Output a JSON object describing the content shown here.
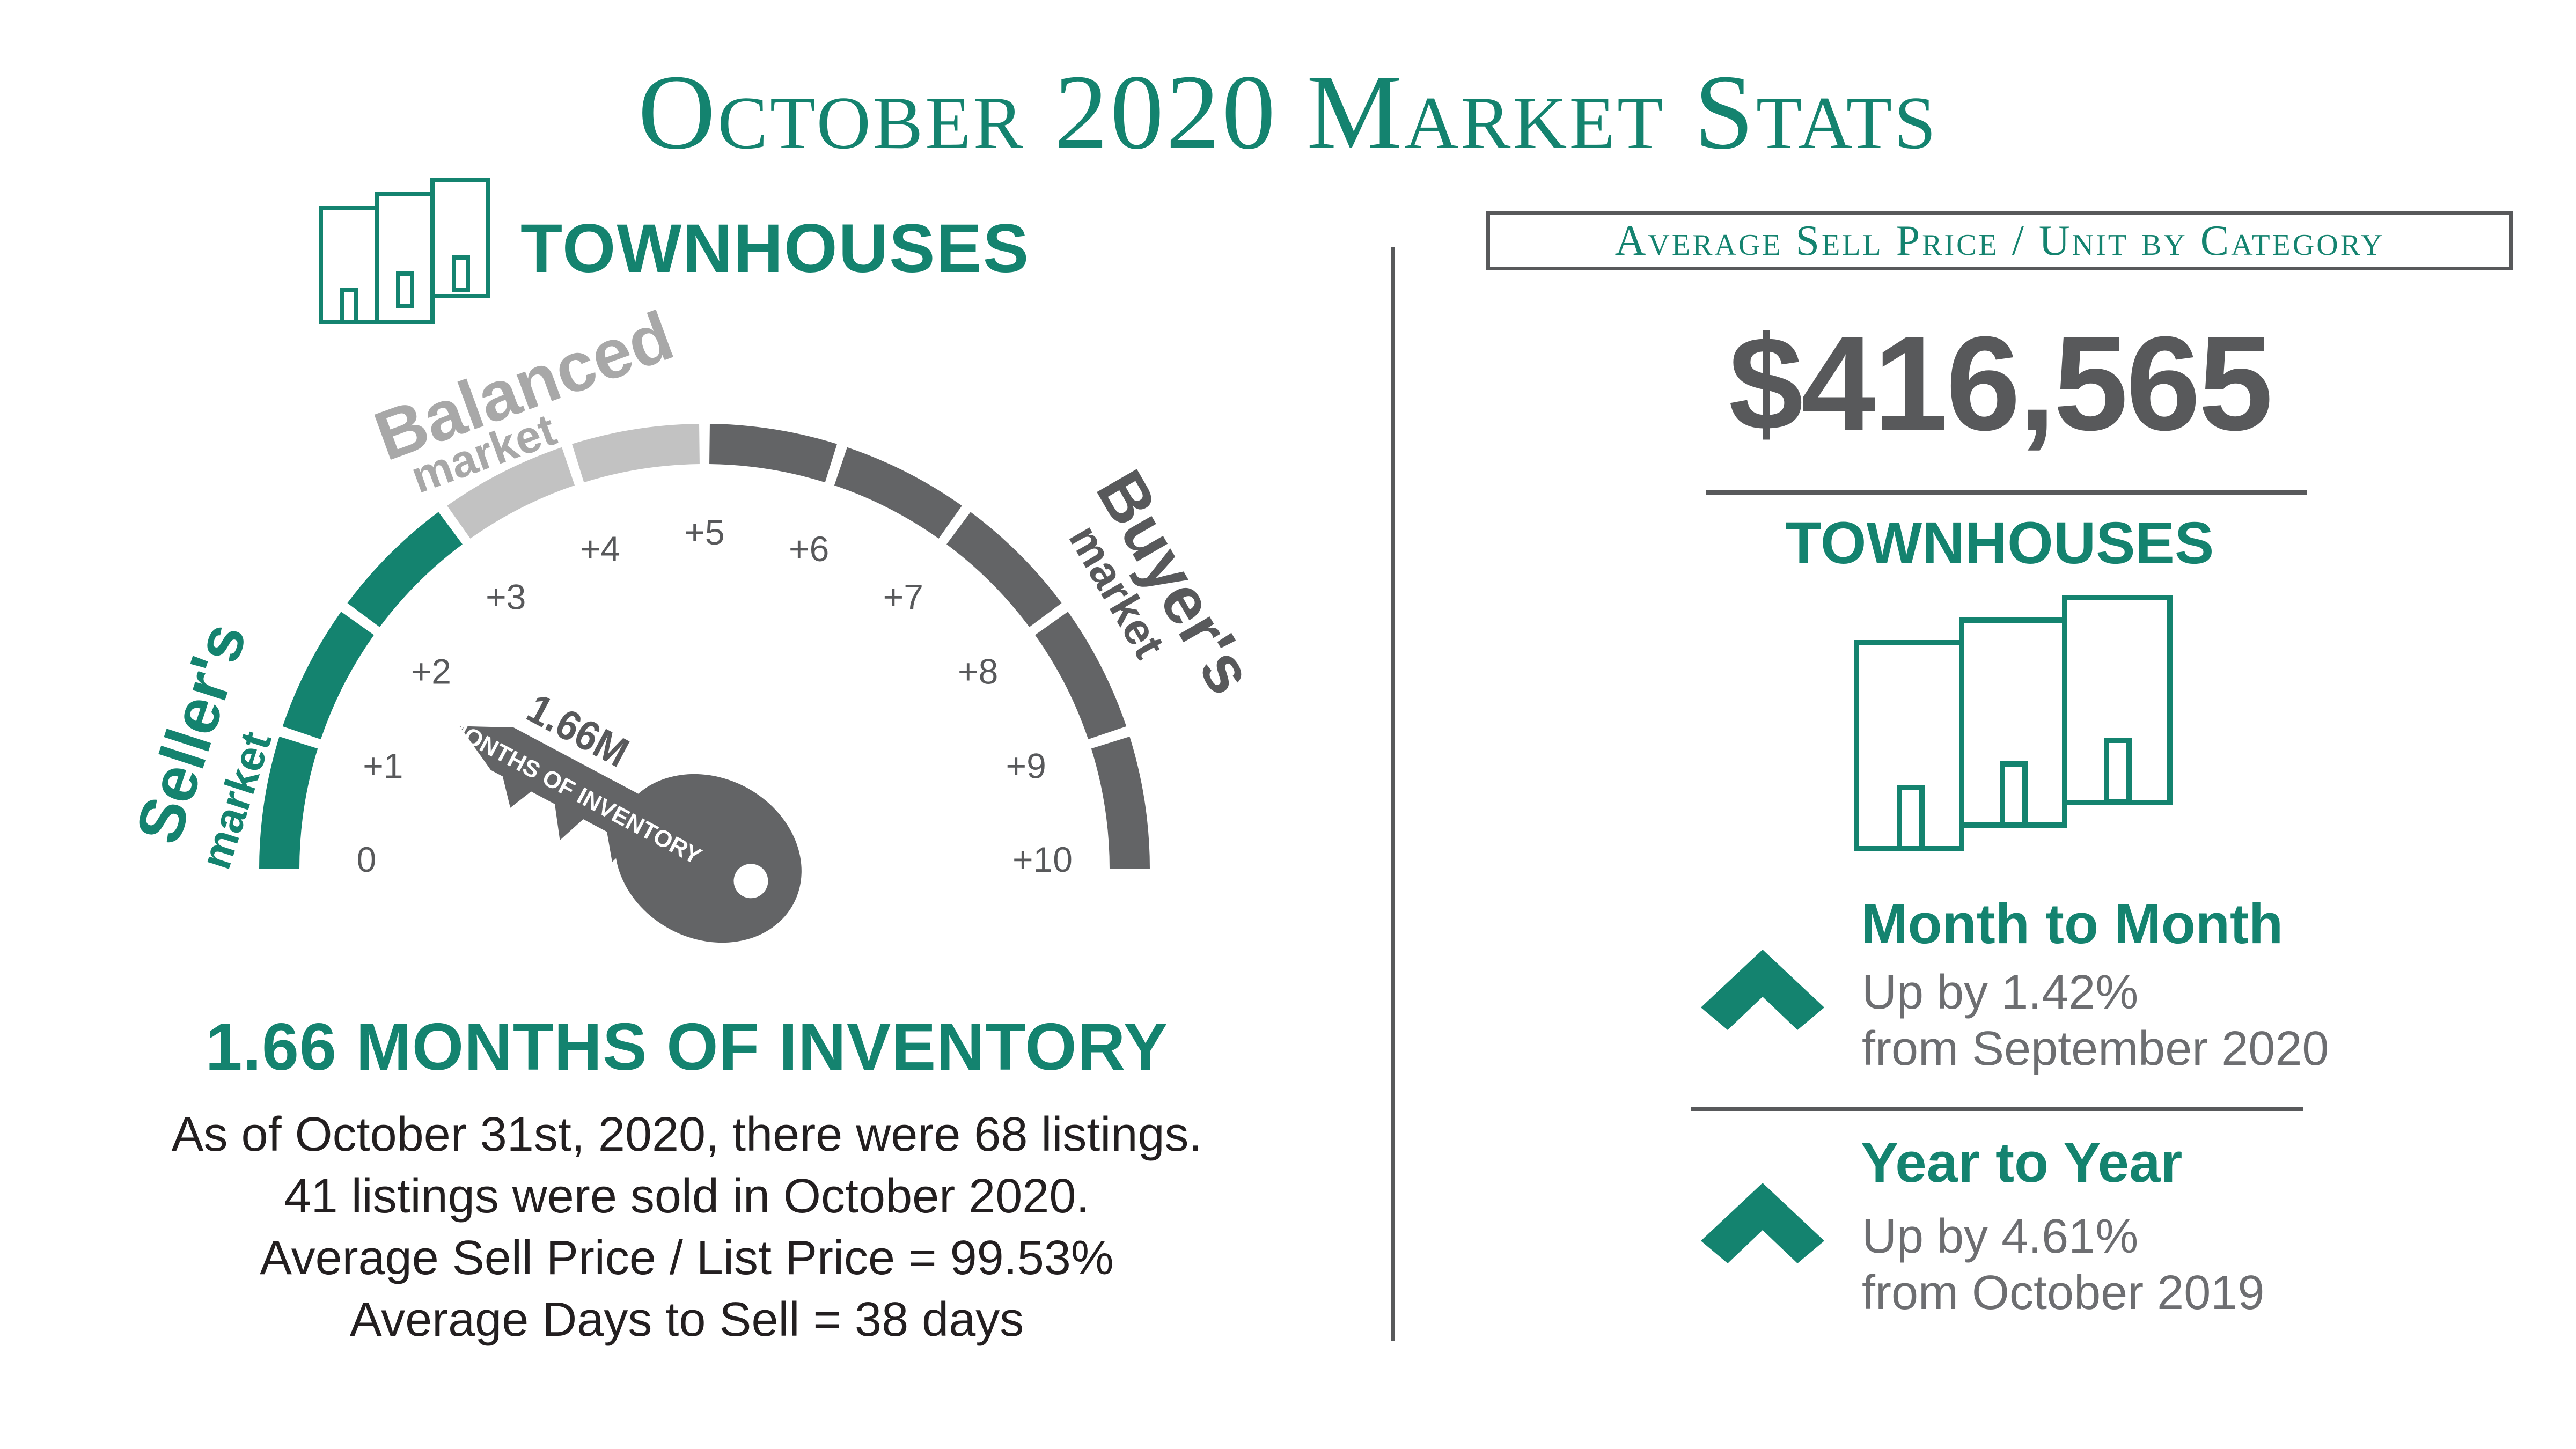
{
  "title": "October 2020 Market Stats",
  "left": {
    "heading": "TOWNHOUSES",
    "gauge": {
      "value": 1.66,
      "min": 0,
      "max": 10,
      "tick_labels": [
        "0",
        "+1",
        "+2",
        "+3",
        "+4",
        "+5",
        "+6",
        "+7",
        "+8",
        "+9",
        "+10"
      ],
      "zones": {
        "sellers": {
          "title": "Seller's",
          "sub": "market",
          "range": [
            0,
            3
          ],
          "color": "#14836f"
        },
        "balanced": {
          "title": "Balanced",
          "sub": "market",
          "range": [
            3,
            5
          ],
          "color": "#c2c2c2"
        },
        "buyers": {
          "title": "Buyer's",
          "sub": "market",
          "range": [
            5,
            10
          ],
          "color": "#636466"
        }
      },
      "key_value_label": "1.66M",
      "key_sub_label": "MONTHS OF INVENTORY"
    },
    "inventory_title": "1.66 MONTHS OF INVENTORY",
    "lines": [
      "As of October 31st, 2020, there were 68 listings.",
      "41 listings were sold in October 2020.",
      "Average Sell Price / List Price = 99.53%",
      "Average Days to Sell = 38 days"
    ]
  },
  "right": {
    "box_label": "Average Sell Price / Unit by Category",
    "price": "$416,565",
    "heading": "TOWNHOUSES",
    "changes": [
      {
        "title": "Month to Month",
        "line1": "Up by 1.42%",
        "line2": "from September 2020",
        "direction": "up"
      },
      {
        "title": "Year to Year",
        "line1": "Up by 4.61%",
        "line2": "from October 2019",
        "direction": "up"
      }
    ]
  },
  "colors": {
    "green": "#14836f",
    "dark_gray": "#58595b",
    "light_gray": "#c2c2c2"
  },
  "icons": [
    "townhouses-icon",
    "key-icon",
    "chevron-up-icon"
  ]
}
